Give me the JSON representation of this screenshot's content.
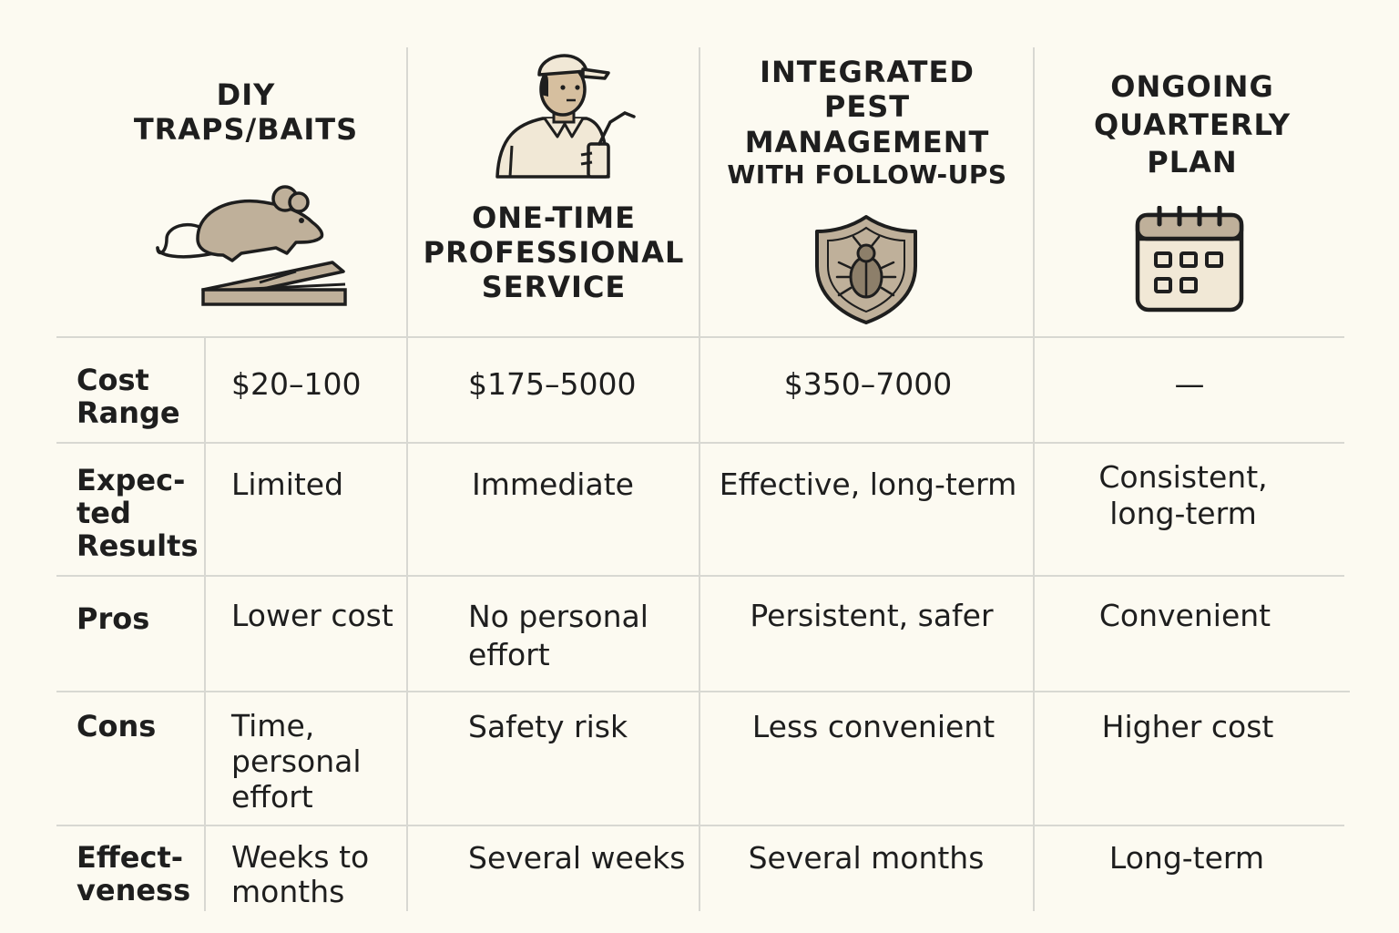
{
  "columns": [
    {
      "title_lines": [
        "DIY",
        "TRAPS/BAITS"
      ],
      "icon": "mouse-trap-icon"
    },
    {
      "title_lines": [
        "ONE-TIME",
        "PROFESSIONAL",
        "SERVICE"
      ],
      "icon": "technician-icon"
    },
    {
      "title_lines": [
        "INTEGRATED",
        "PEST",
        "MANAGEMENT",
        "WITH FOLLOW-UPS"
      ],
      "icon": "bug-shield-icon"
    },
    {
      "title_lines": [
        "ONGOING",
        "QUARTERLY",
        "PLAN"
      ],
      "icon": "calendar-icon"
    }
  ],
  "rows": [
    {
      "label_lines": [
        "Cost",
        "Range"
      ],
      "cells": [
        [
          "$20–100"
        ],
        [
          "$175–5000"
        ],
        [
          "$350–7000"
        ],
        [
          "—"
        ]
      ]
    },
    {
      "label_lines": [
        "Expec-",
        "ted",
        "Results"
      ],
      "cells": [
        [
          "Limited"
        ],
        [
          "Immediate"
        ],
        [
          "Effective, long-term"
        ],
        [
          "Consistent,",
          "long-term"
        ]
      ]
    },
    {
      "label_lines": [
        "Pros"
      ],
      "cells": [
        [
          "Lower cost"
        ],
        [
          "No personal",
          "effort"
        ],
        [
          "Persistent, safer"
        ],
        [
          "Convenient"
        ]
      ]
    },
    {
      "label_lines": [
        "Cons"
      ],
      "cells": [
        [
          "Time,",
          "personal",
          "effort"
        ],
        [
          "Safety risk"
        ],
        [
          "Less convenient"
        ],
        [
          "Higher cost"
        ]
      ]
    },
    {
      "label_lines": [
        "Effect-",
        "veness"
      ],
      "cells": [
        [
          "Weeks to",
          "months"
        ],
        [
          "Several weeks"
        ],
        [
          "Several months"
        ],
        [
          "Long-term"
        ]
      ]
    }
  ],
  "colors": {
    "background": "#fcfaf1",
    "icon_fill": "#bfb09a",
    "grid": "#d8d8d2"
  }
}
